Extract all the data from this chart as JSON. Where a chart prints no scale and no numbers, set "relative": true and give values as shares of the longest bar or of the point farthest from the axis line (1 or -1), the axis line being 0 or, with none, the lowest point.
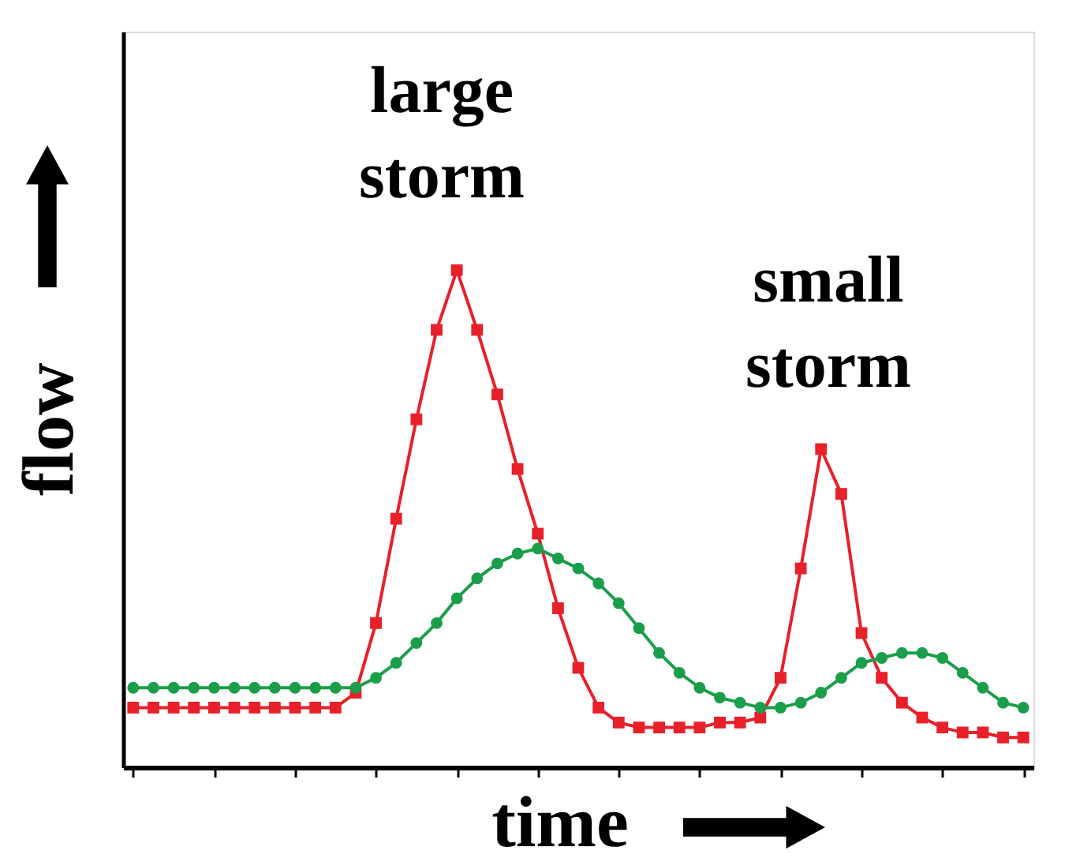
{
  "chart_data": {
    "type": "line",
    "relative": true,
    "xlabel": "time",
    "ylabel": "flow",
    "annotations": [
      "large storm",
      "small storm"
    ],
    "categories": [
      null,
      null,
      null,
      null,
      null,
      null,
      null,
      null,
      null,
      null,
      null,
      null,
      null,
      null,
      null,
      null,
      null,
      null,
      null,
      null,
      null,
      null,
      null,
      null,
      null,
      null,
      null,
      null,
      null,
      null,
      null,
      null,
      null,
      null,
      null,
      null,
      null,
      null,
      null,
      null,
      null,
      null,
      null,
      null,
      null
    ],
    "series": [
      {
        "color": "#e8202a",
        "marker": "square",
        "values": [
          0.12,
          0.12,
          0.12,
          0.12,
          0.12,
          0.12,
          0.12,
          0.12,
          0.12,
          0.12,
          0.12,
          0.15,
          0.29,
          0.5,
          0.7,
          0.88,
          1.0,
          0.88,
          0.75,
          0.6,
          0.47,
          0.32,
          0.2,
          0.12,
          0.09,
          0.08,
          0.08,
          0.08,
          0.08,
          0.09,
          0.09,
          0.1,
          0.18,
          0.4,
          0.64,
          0.55,
          0.27,
          0.18,
          0.13,
          0.1,
          0.08,
          0.07,
          0.07,
          0.06,
          0.06
        ]
      },
      {
        "color": "#1a9e4a",
        "marker": "circle",
        "values": [
          0.16,
          0.16,
          0.16,
          0.16,
          0.16,
          0.16,
          0.16,
          0.16,
          0.16,
          0.16,
          0.16,
          0.16,
          0.18,
          0.21,
          0.25,
          0.29,
          0.34,
          0.38,
          0.41,
          0.43,
          0.44,
          0.42,
          0.4,
          0.37,
          0.33,
          0.28,
          0.23,
          0.19,
          0.16,
          0.14,
          0.13,
          0.12,
          0.12,
          0.13,
          0.15,
          0.18,
          0.21,
          0.22,
          0.23,
          0.23,
          0.22,
          0.19,
          0.16,
          0.13,
          0.12
        ]
      }
    ]
  }
}
